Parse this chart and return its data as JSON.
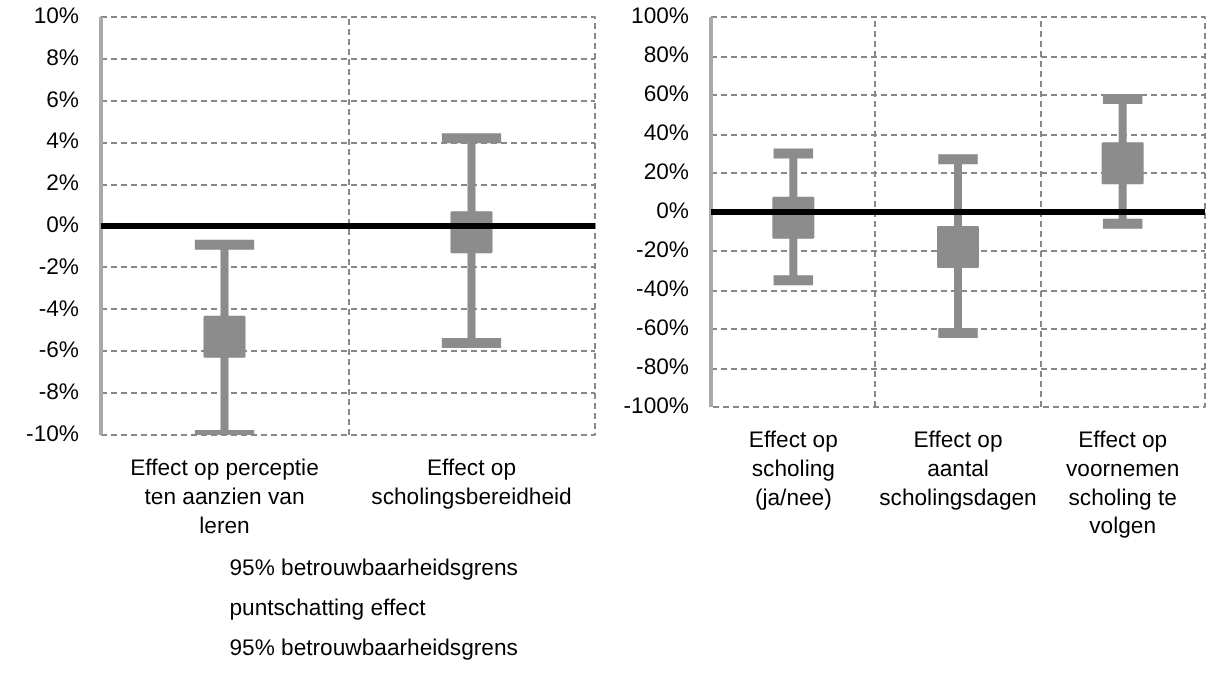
{
  "chart_data": [
    {
      "type": "scatter",
      "categories": [
        "Effect op perceptie ten aanzien van leren",
        "Effect op scholingsbereidheid"
      ],
      "marker": "square",
      "grid": true,
      "ylim": [
        -10,
        10
      ],
      "yticks": [
        {
          "value": -10,
          "label": "-10%"
        },
        {
          "value": -8,
          "label": "-8%"
        },
        {
          "value": -6,
          "label": "-6%"
        },
        {
          "value": -4,
          "label": "-4%"
        },
        {
          "value": -2,
          "label": "-2%"
        },
        {
          "value": 0,
          "label": "0%"
        },
        {
          "value": 2,
          "label": "2%"
        },
        {
          "value": 4,
          "label": "4%"
        },
        {
          "value": 6,
          "label": "6%"
        },
        {
          "value": 8,
          "label": "8%"
        },
        {
          "value": 10,
          "label": "10%"
        }
      ],
      "series": [
        {
          "color": "#8c8c8c",
          "values": [
            -5.3,
            -0.3
          ],
          "errors": [
            [
              -10,
              -0.9
            ],
            [
              -5.6,
              4.2
            ]
          ]
        }
      ],
      "ref_lines": [
        {
          "axis": "y",
          "value": 0,
          "color": "#000000"
        }
      ],
      "annotations": [
        "95% betrouwbaarheidsgrens",
        "puntschatting effect",
        "95% betrouwbaarheidsgrens"
      ]
    },
    {
      "type": "scatter",
      "categories": [
        "Effect op scholing (ja/nee)",
        "Effect op aantal scholingsdagen",
        "Effect op voornemen scholing te volgen"
      ],
      "marker": "square",
      "grid": true,
      "ylim": [
        -100,
        100
      ],
      "yticks": [
        {
          "value": -100,
          "label": "-100%"
        },
        {
          "value": -80,
          "label": "-80%"
        },
        {
          "value": -60,
          "label": "-60%"
        },
        {
          "value": -40,
          "label": "-40%"
        },
        {
          "value": -20,
          "label": "-20%"
        },
        {
          "value": 0,
          "label": "0%"
        },
        {
          "value": 20,
          "label": "20%"
        },
        {
          "value": 40,
          "label": "40%"
        },
        {
          "value": 60,
          "label": "60%"
        },
        {
          "value": 80,
          "label": "80%"
        },
        {
          "value": 100,
          "label": "100%"
        }
      ],
      "series": [
        {
          "color": "#8c8c8c",
          "values": [
            -3,
            -18,
            25
          ],
          "errors": [
            [
              -35,
              30
            ],
            [
              -62,
              27
            ],
            [
              -6,
              58
            ]
          ]
        }
      ],
      "ref_lines": [
        {
          "axis": "y",
          "value": 0,
          "color": "#000000"
        }
      ]
    }
  ]
}
